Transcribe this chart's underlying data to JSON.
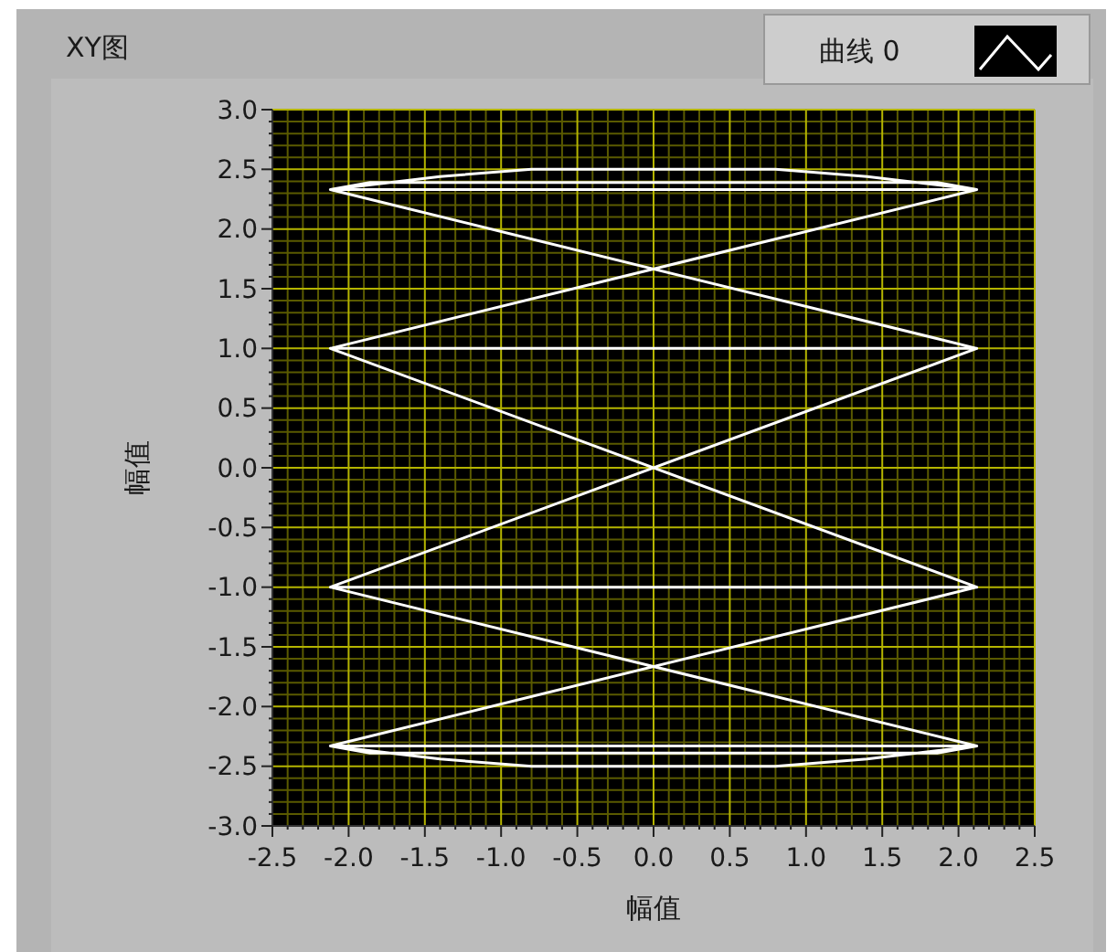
{
  "chart_data": {
    "type": "line",
    "title": "XY图",
    "xlabel": "幅值",
    "ylabel": "幅值",
    "xlim": [
      -2.5,
      2.5
    ],
    "xticks": [
      {
        "value": -2.5,
        "label": "-2.5"
      },
      {
        "value": -2.4,
        "label": null
      },
      {
        "value": -2.3,
        "label": null
      },
      {
        "value": -2.2,
        "label": null
      },
      {
        "value": -2.1,
        "label": null
      },
      {
        "value": -2,
        "label": "-2.0"
      },
      {
        "value": -1.9,
        "label": null
      },
      {
        "value": -1.8,
        "label": null
      },
      {
        "value": -1.7,
        "label": null
      },
      {
        "value": -1.6,
        "label": null
      },
      {
        "value": -1.5,
        "label": "-1.5"
      },
      {
        "value": -1.4,
        "label": null
      },
      {
        "value": -1.3,
        "label": null
      },
      {
        "value": -1.2,
        "label": null
      },
      {
        "value": -1.1,
        "label": null
      },
      {
        "value": -1,
        "label": "-1.0"
      },
      {
        "value": -0.9,
        "label": null
      },
      {
        "value": -0.8,
        "label": null
      },
      {
        "value": -0.7,
        "label": null
      },
      {
        "value": -0.6,
        "label": null
      },
      {
        "value": -0.5,
        "label": "-0.5"
      },
      {
        "value": -0.4,
        "label": null
      },
      {
        "value": -0.3,
        "label": null
      },
      {
        "value": -0.2,
        "label": null
      },
      {
        "value": -0.1,
        "label": null
      },
      {
        "value": 0,
        "label": "0.0"
      },
      {
        "value": 0.1,
        "label": null
      },
      {
        "value": 0.2,
        "label": null
      },
      {
        "value": 0.3,
        "label": null
      },
      {
        "value": 0.4,
        "label": null
      },
      {
        "value": 0.5,
        "label": "0.5"
      },
      {
        "value": 0.6,
        "label": null
      },
      {
        "value": 0.7,
        "label": null
      },
      {
        "value": 0.8,
        "label": null
      },
      {
        "value": 0.9,
        "label": null
      },
      {
        "value": 1,
        "label": "1.0"
      },
      {
        "value": 1.1,
        "label": null
      },
      {
        "value": 1.2,
        "label": null
      },
      {
        "value": 1.3,
        "label": null
      },
      {
        "value": 1.4,
        "label": null
      },
      {
        "value": 1.5,
        "label": "1.5"
      },
      {
        "value": 1.6,
        "label": null
      },
      {
        "value": 1.7,
        "label": null
      },
      {
        "value": 1.8,
        "label": null
      },
      {
        "value": 1.9,
        "label": null
      },
      {
        "value": 2,
        "label": "2.0"
      },
      {
        "value": 2.1,
        "label": null
      },
      {
        "value": 2.2,
        "label": null
      },
      {
        "value": 2.3,
        "label": null
      },
      {
        "value": 2.4,
        "label": null
      },
      {
        "value": 2.5,
        "label": "2.5"
      }
    ],
    "ylim": [
      -3,
      3
    ],
    "yticks": [
      {
        "value": -3,
        "label": "-3.0"
      },
      {
        "value": -2.9,
        "label": null
      },
      {
        "value": -2.8,
        "label": null
      },
      {
        "value": -2.7,
        "label": null
      },
      {
        "value": -2.6,
        "label": null
      },
      {
        "value": -2.5,
        "label": "-2.5"
      },
      {
        "value": -2.4,
        "label": null
      },
      {
        "value": -2.3,
        "label": null
      },
      {
        "value": -2.2,
        "label": null
      },
      {
        "value": -2.1,
        "label": null
      },
      {
        "value": -2,
        "label": "-2.0"
      },
      {
        "value": -1.9,
        "label": null
      },
      {
        "value": -1.8,
        "label": null
      },
      {
        "value": -1.7,
        "label": null
      },
      {
        "value": -1.6,
        "label": null
      },
      {
        "value": -1.5,
        "label": "-1.5"
      },
      {
        "value": -1.4,
        "label": null
      },
      {
        "value": -1.3,
        "label": null
      },
      {
        "value": -1.2,
        "label": null
      },
      {
        "value": -1.1,
        "label": null
      },
      {
        "value": -1,
        "label": "-1.0"
      },
      {
        "value": -0.9,
        "label": null
      },
      {
        "value": -0.8,
        "label": null
      },
      {
        "value": -0.7,
        "label": null
      },
      {
        "value": -0.6,
        "label": null
      },
      {
        "value": -0.5,
        "label": "-0.5"
      },
      {
        "value": -0.4,
        "label": null
      },
      {
        "value": -0.3,
        "label": null
      },
      {
        "value": -0.2,
        "label": null
      },
      {
        "value": -0.1,
        "label": null
      },
      {
        "value": 0,
        "label": "0.0"
      },
      {
        "value": 0.1,
        "label": null
      },
      {
        "value": 0.2,
        "label": null
      },
      {
        "value": 0.3,
        "label": null
      },
      {
        "value": 0.4,
        "label": null
      },
      {
        "value": 0.5,
        "label": "0.5"
      },
      {
        "value": 0.6,
        "label": null
      },
      {
        "value": 0.7,
        "label": null
      },
      {
        "value": 0.8,
        "label": null
      },
      {
        "value": 0.9,
        "label": null
      },
      {
        "value": 1,
        "label": "1.0"
      },
      {
        "value": 1.1,
        "label": null
      },
      {
        "value": 1.2,
        "label": null
      },
      {
        "value": 1.3,
        "label": null
      },
      {
        "value": 1.4,
        "label": null
      },
      {
        "value": 1.5,
        "label": "1.5"
      },
      {
        "value": 1.6,
        "label": null
      },
      {
        "value": 1.7,
        "label": null
      },
      {
        "value": 1.8,
        "label": null
      },
      {
        "value": 1.9,
        "label": null
      },
      {
        "value": 2,
        "label": "2.0"
      },
      {
        "value": 2.1,
        "label": null
      },
      {
        "value": 2.2,
        "label": null
      },
      {
        "value": 2.3,
        "label": null
      },
      {
        "value": 2.4,
        "label": null
      },
      {
        "value": 2.5,
        "label": "2.5"
      },
      {
        "value": 2.6,
        "label": null
      },
      {
        "value": 2.7,
        "label": null
      },
      {
        "value": 2.8,
        "label": null
      },
      {
        "value": 2.9,
        "label": null
      },
      {
        "value": 3,
        "label": "3.0"
      }
    ],
    "grid": true,
    "legend": "top right",
    "marker": "none",
    "line_style": "solid",
    "series": [
      {
        "name": "曲线 0",
        "color": "#ffffff",
        "x": [
          2.12,
          -2.12,
          -1.4,
          -0.8,
          0.8,
          1.4,
          2.12,
          1.86,
          -1.86,
          -2.12,
          2.12,
          -2.12,
          2.12,
          -2.12,
          2.12,
          -2.12,
          2.12,
          -2.12,
          2.12,
          -2.12,
          -1.4,
          -0.8,
          0.8,
          1.4,
          2.12,
          1.86,
          -1.86,
          -2.12,
          2.12,
          -2.12
        ],
        "values": [
          1.0,
          2.33,
          2.44,
          2.5,
          2.5,
          2.44,
          2.33,
          2.39,
          2.39,
          2.33,
          2.33,
          1.0,
          1.0,
          -1.0,
          -1.0,
          1.0,
          -1.0,
          -2.33,
          -2.33,
          -2.33,
          -2.44,
          -2.5,
          -2.5,
          -2.44,
          -2.33,
          -2.39,
          -2.39,
          -2.33,
          -2.33,
          -1.0
        ]
      }
    ]
  }
}
